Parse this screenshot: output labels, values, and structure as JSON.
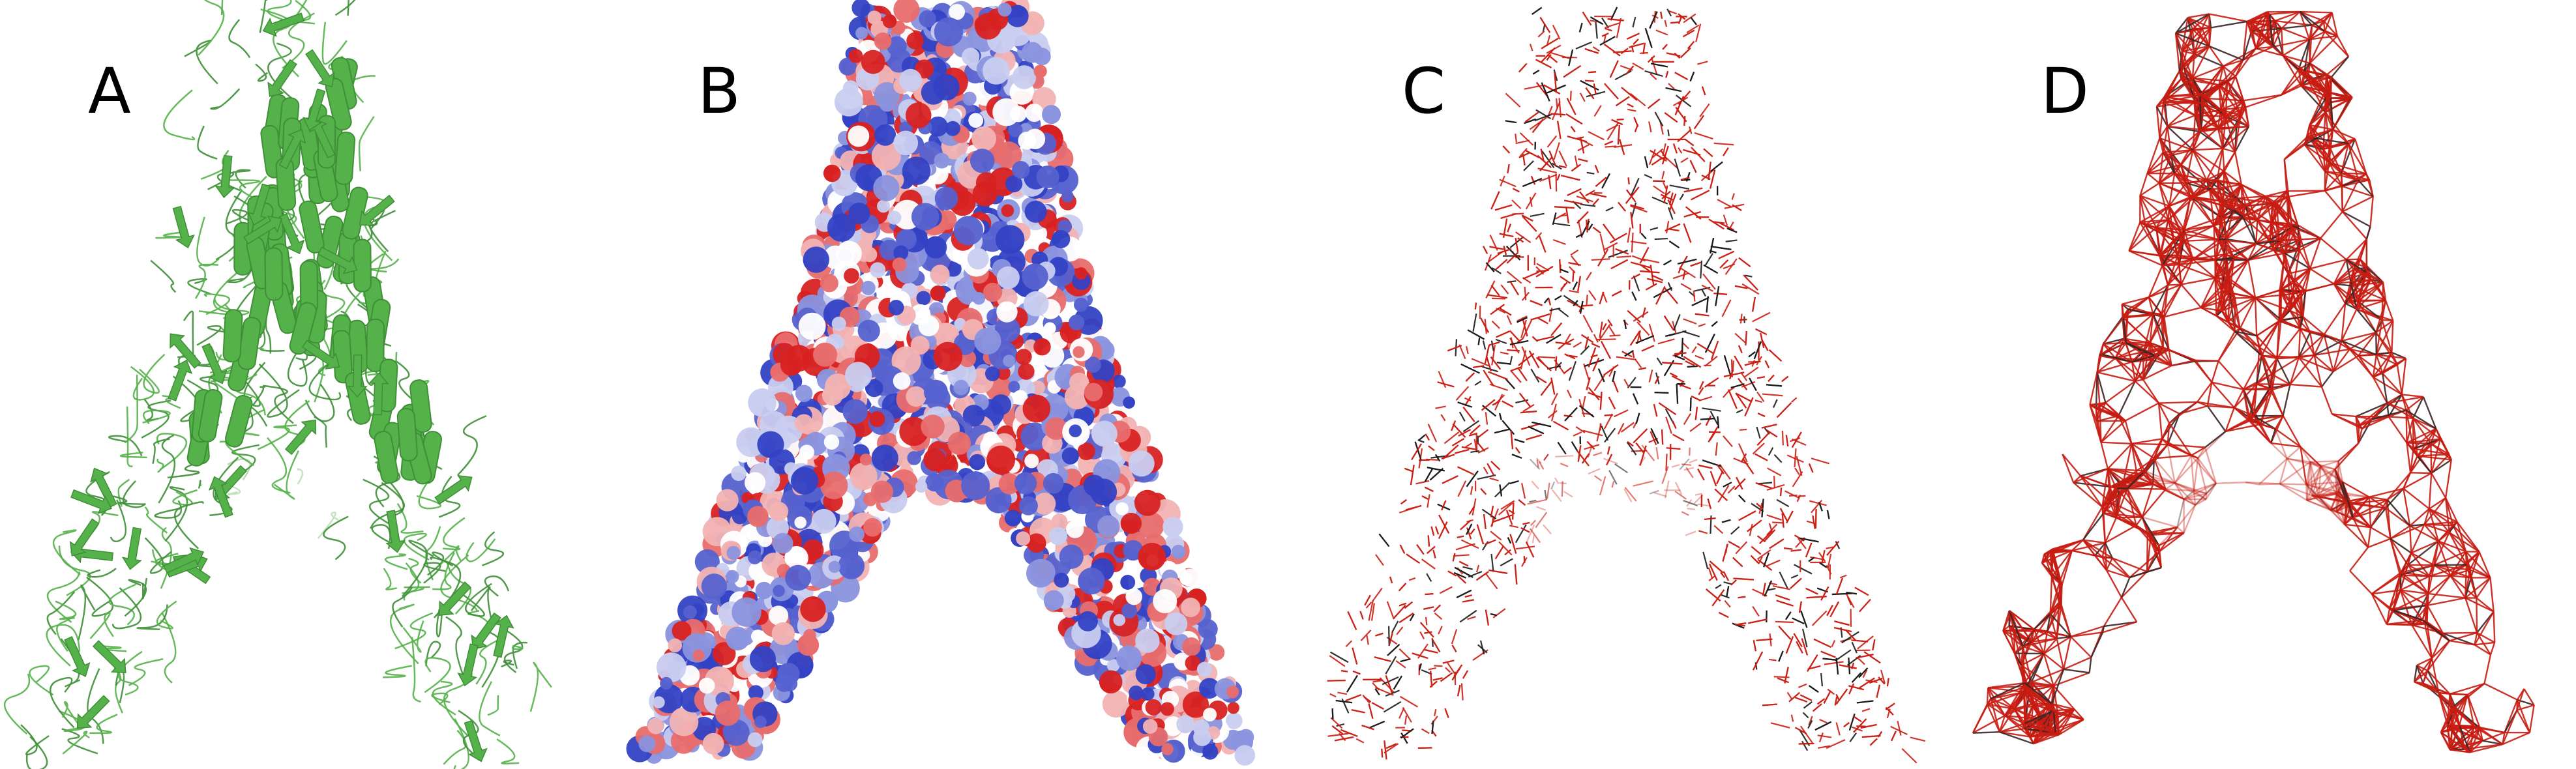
{
  "panels": [
    {
      "label": "A",
      "style": "cartoon",
      "colors": [
        "#55b14a",
        "#3f8f37",
        "#9ed493"
      ]
    },
    {
      "label": "B",
      "style": "electrostatic-surface",
      "colors": [
        "#d82222",
        "#ffffff",
        "#3342c4"
      ]
    },
    {
      "label": "C",
      "style": "stick-model",
      "colors": [
        "#cc1f14",
        "#1a1a1a"
      ]
    },
    {
      "label": "D",
      "style": "mesh-network",
      "colors": [
        "#c81c12",
        "#3a2626"
      ]
    }
  ]
}
